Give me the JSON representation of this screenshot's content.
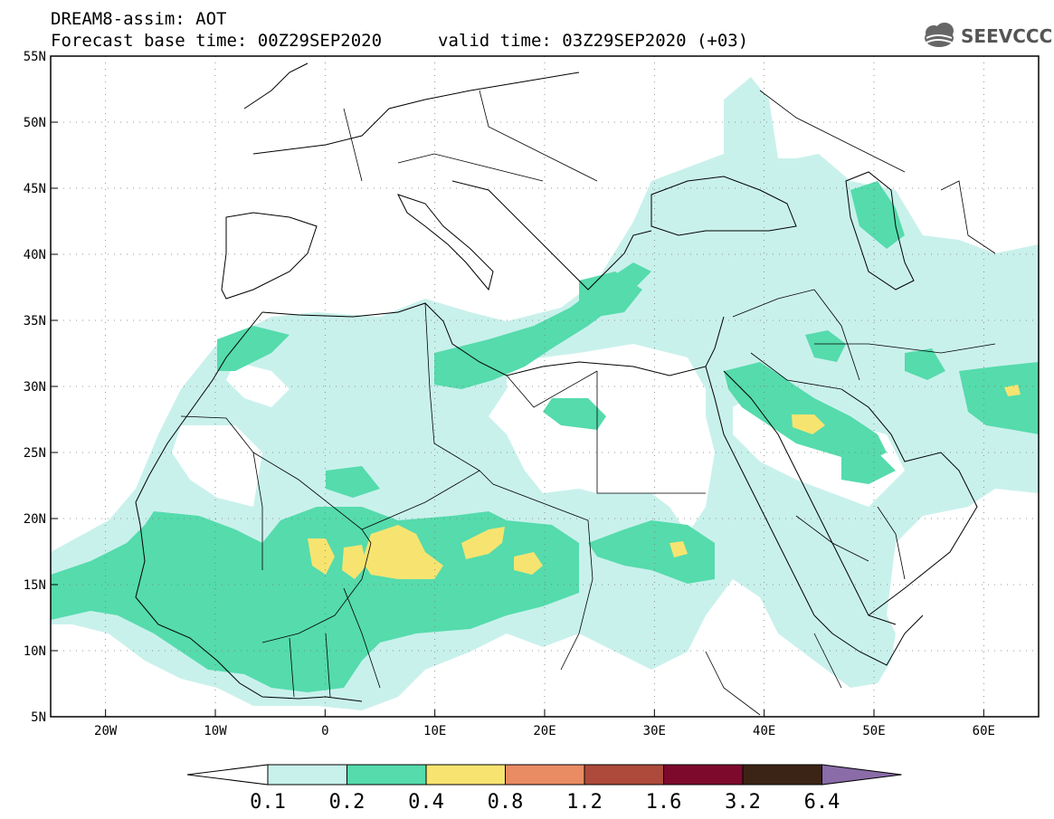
{
  "header": {
    "line1": "DREAM8-assim: AOT",
    "line2_left": "Forecast base time: 00Z29SEP2020",
    "line2_right": "valid time: 03Z29SEP2020 (+03)",
    "logo_text": "SEEVCCC"
  },
  "map": {
    "lat_range": [
      5,
      55
    ],
    "lon_range": [
      -25,
      65
    ],
    "lat_labels": [
      "55N",
      "50N",
      "45N",
      "40N",
      "35N",
      "30N",
      "25N",
      "20N",
      "15N",
      "10N",
      "5N"
    ],
    "lon_labels": [
      "20W",
      "10W",
      "0",
      "10E",
      "20E",
      "30E",
      "40E",
      "50E",
      "60E"
    ],
    "grid": true
  },
  "colorbar": {
    "labels": [
      "0.1",
      "0.2",
      "0.4",
      "0.8",
      "1.2",
      "1.6",
      "3.2",
      "6.4"
    ],
    "colors": [
      "#ffffff",
      "#c9f1ec",
      "#55dbac",
      "#f7e470",
      "#e98b63",
      "#ad4a3c",
      "#7d0a2c",
      "#3b2415",
      "#8a6ca8"
    ]
  },
  "colors": {
    "level_01_02": "#c9f1ec",
    "level_02_04": "#55dbac",
    "level_04_08": "#f7e470"
  }
}
